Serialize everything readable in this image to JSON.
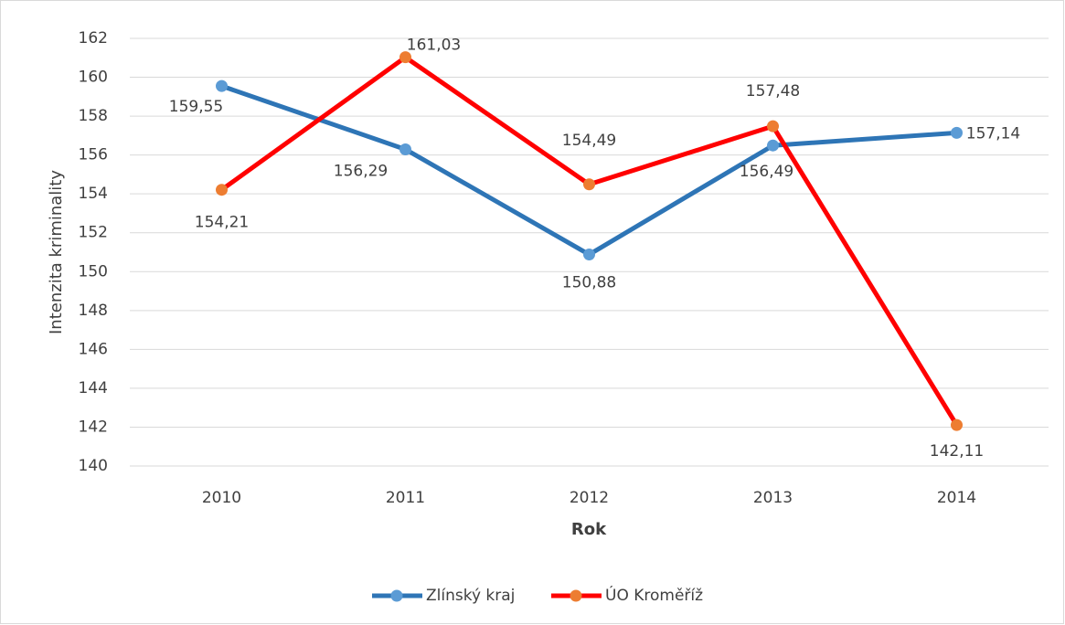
{
  "chart_data": {
    "type": "line",
    "categories": [
      "2010",
      "2011",
      "2012",
      "2013",
      "2014"
    ],
    "series": [
      {
        "name": "Zlínský kraj",
        "color": "#2e75b6",
        "marker_color": "#5b9bd5",
        "values": [
          159.55,
          156.29,
          150.88,
          156.49,
          157.14
        ],
        "value_labels": [
          "159,55",
          "156,29",
          "150,88",
          "156,49",
          "157,14"
        ]
      },
      {
        "name": "ÚO Kroměříž",
        "color": "#ff0000",
        "marker_color": "#ed7d31",
        "values": [
          154.21,
          161.03,
          154.49,
          157.48,
          142.11
        ],
        "value_labels": [
          "154,21",
          "161,03",
          "154,49",
          "157,48",
          "142,11"
        ]
      }
    ],
    "x_label": "Rok",
    "y_label": "Intenzita kriminality",
    "ylim": [
      140,
      162
    ],
    "yticks": [
      140,
      142,
      144,
      146,
      148,
      150,
      152,
      154,
      156,
      158,
      160,
      162
    ],
    "grid": true,
    "legend": "bottom"
  }
}
